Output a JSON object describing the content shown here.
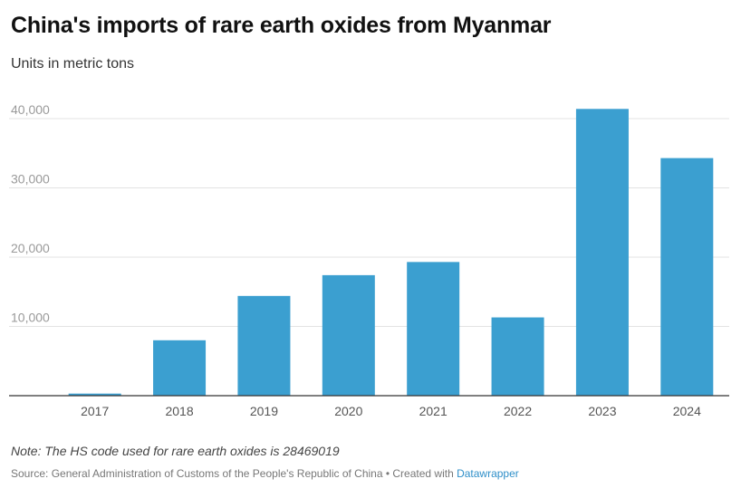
{
  "header": {
    "title": "China's imports of rare earth oxides from Myanmar",
    "subtitle": "Units in metric tons"
  },
  "footer": {
    "note": "Note: The HS code used for rare earth oxides is 28469019",
    "source_text": "Source: General Administration of Customs of the People's Republic of China • Created with ",
    "source_link": "Datawrapper"
  },
  "colors": {
    "bar": "#3b9fd0",
    "grid": "#e3e3e3",
    "baseline": "#333333"
  },
  "chart_data": {
    "type": "bar",
    "title": "China's imports of rare earth oxides from Myanmar",
    "subtitle": "Units in metric tons",
    "categories": [
      "2017",
      "2018",
      "2019",
      "2020",
      "2021",
      "2022",
      "2023",
      "2024"
    ],
    "values": [
      300,
      8000,
      14400,
      17400,
      19300,
      11300,
      41400,
      34300
    ],
    "ylim": [
      0,
      40000
    ],
    "yticks": [
      10000,
      20000,
      30000,
      40000
    ],
    "ytick_labels": [
      "10,000",
      "20,000",
      "30,000",
      "40,000"
    ],
    "grid": true,
    "legend": "none"
  }
}
